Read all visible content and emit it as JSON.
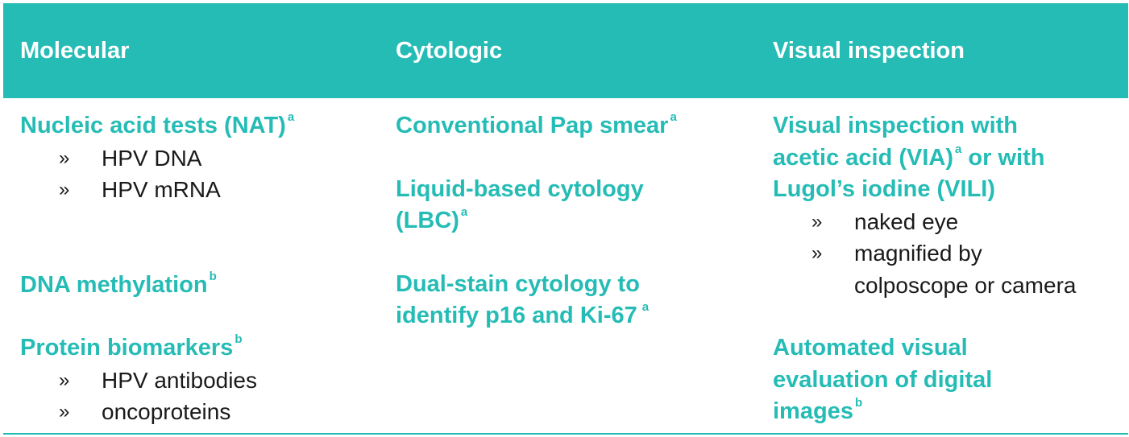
{
  "colors": {
    "header_bg": "#26bcb6",
    "accent_text": "#26bcb6",
    "body_text": "#1a1a1a"
  },
  "columns": [
    {
      "header": "Molecular",
      "entries": [
        {
          "title": "Nucleic acid tests (NAT)",
          "sup": "a",
          "bullets": [
            "HPV DNA",
            "HPV mRNA"
          ]
        },
        {
          "title": "DNA methylation",
          "sup": "b",
          "bullets": []
        },
        {
          "title": "Protein biomarkers",
          "sup": "b",
          "bullets": [
            "HPV antibodies",
            "oncoproteins"
          ]
        }
      ]
    },
    {
      "header": "Cytologic",
      "entries": [
        {
          "title": "Conventional Pap smear",
          "sup": "a",
          "bullets": []
        },
        {
          "title_line1": "Liquid-based cytology",
          "title_line2": "(LBC)",
          "sup": "a"
        },
        {
          "title_line1": "Dual-stain cytology to",
          "title_line2": "identify p16 and Ki-67",
          "sup": "a"
        }
      ]
    },
    {
      "header": "Visual inspection",
      "entries": [
        {
          "title_line1": "Visual inspection with",
          "title_line2a": "acetic acid (VIA)",
          "sup": "a",
          "title_line2b": " or with",
          "title_line3": "Lugol’s iodine (VILI)",
          "bullets": [
            "naked eye",
            "magnified by",
            "colposcope or camera"
          ]
        },
        {
          "title_line1": "Automated visual",
          "title_line2": "evaluation of digital",
          "title_line3": "images",
          "sup": "b"
        }
      ]
    }
  ],
  "bullet_marker": "»"
}
